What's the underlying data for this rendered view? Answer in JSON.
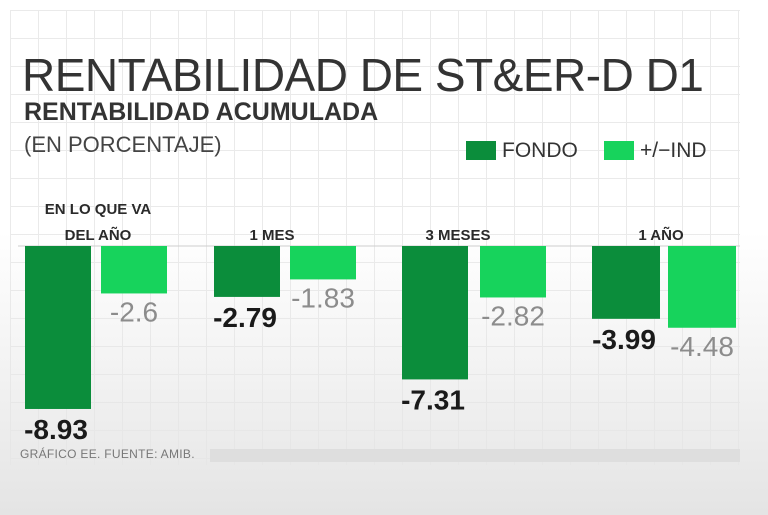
{
  "header": {
    "title": "RENTABILIDAD DE ST&ER-D D1",
    "subtitle": "RENTABILIDAD ACUMULADA",
    "units": "(EN PORCENTAJE)"
  },
  "source": "GRÁFICO EE. FUENTE: AMIB.",
  "colors": {
    "fondo": "#0b8d3b",
    "ind": "#17d35c",
    "text": "#1a1a1a",
    "muted": "#8c8c8c"
  },
  "chart_data": {
    "type": "bar",
    "title": "RENTABILIDAD ACUMULADA",
    "ylabel": "(EN PORCENTAJE)",
    "categories": [
      [
        "EN LO QUE VA",
        "DEL AÑO"
      ],
      [
        "1 MES"
      ],
      [
        "3 MESES"
      ],
      [
        "1 AÑO"
      ]
    ],
    "series": [
      {
        "name": "FONDO",
        "values": [
          -8.93,
          -2.79,
          -7.31,
          -3.99
        ],
        "labels": [
          "-8.93",
          "-2.79",
          "-7.31",
          "-3.99"
        ]
      },
      {
        "name": "+/−IND",
        "values": [
          -2.6,
          -1.83,
          -2.82,
          -4.48
        ],
        "labels": [
          "-2.6",
          "-1.83",
          "-2.82",
          "-4.48"
        ]
      }
    ],
    "ylim": [
      -8.93,
      0
    ],
    "grid": true,
    "legend": "top-right"
  }
}
